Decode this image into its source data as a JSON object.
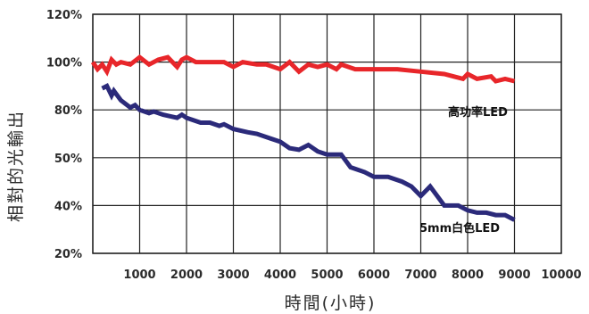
{
  "chart_data": {
    "type": "line",
    "title": "",
    "xlabel": "時間(小時)",
    "ylabel": "相對的光輸出",
    "xlim": [
      0,
      10000
    ],
    "x_ticks": [
      1000,
      2000,
      3000,
      4000,
      5000,
      6000,
      7000,
      8000,
      9000,
      10000
    ],
    "x_tick_labels": [
      "1000",
      "2000",
      "3000",
      "4000",
      "5000",
      "6000",
      "7000",
      "8000",
      "9000",
      "10000"
    ],
    "y_ticks": [
      20,
      40,
      50,
      80,
      100,
      120
    ],
    "y_tick_labels": [
      "20%",
      "40%",
      "50%",
      "80%",
      "100%",
      "120%"
    ],
    "grid": true,
    "legend": "none (series labelled directly on the plot)",
    "series": [
      {
        "name": "高功率LED",
        "color": "#e8262a",
        "x": [
          0,
          100,
          200,
          300,
          400,
          500,
          600,
          800,
          1000,
          1200,
          1400,
          1600,
          1800,
          1900,
          2000,
          2200,
          2500,
          2800,
          3000,
          3200,
          3500,
          3700,
          4000,
          4200,
          4400,
          4600,
          4800,
          5000,
          5200,
          5300,
          5600,
          6000,
          6500,
          7000,
          7500,
          7900,
          8000,
          8200,
          8500,
          8600,
          8800,
          9000
        ],
        "values": [
          100,
          97,
          99,
          96,
          101,
          99,
          100,
          99,
          102,
          99,
          101,
          102,
          98,
          101,
          102,
          100,
          100,
          100,
          98,
          100,
          99,
          99,
          97,
          100,
          96,
          99,
          98,
          99,
          97,
          99,
          97,
          97,
          97,
          96,
          95,
          93,
          95,
          93,
          94,
          92,
          93,
          92
        ]
      },
      {
        "name": "5mm白色LED",
        "color": "#2b2a7a",
        "x": [
          200,
          300,
          400,
          450,
          600,
          800,
          900,
          1000,
          1200,
          1300,
          1500,
          1800,
          1900,
          2000,
          2300,
          2500,
          2700,
          2800,
          3000,
          3300,
          3500,
          3800,
          4000,
          4200,
          4400,
          4600,
          4800,
          5000,
          5300,
          5500,
          5800,
          6000,
          6300,
          6600,
          6800,
          7000,
          7200,
          7500,
          7800,
          8000,
          8200,
          8400,
          8600,
          8800,
          9000
        ],
        "values": [
          89,
          90,
          86,
          88,
          84,
          81,
          82,
          80,
          78,
          79,
          77,
          75,
          77,
          75,
          72,
          72,
          70,
          71,
          68,
          66,
          65,
          62,
          60,
          56,
          55,
          58,
          54,
          52,
          52,
          48,
          47,
          46,
          46,
          45,
          44,
          42,
          44,
          40,
          40,
          38,
          37,
          37,
          36,
          36,
          34
        ]
      }
    ]
  }
}
